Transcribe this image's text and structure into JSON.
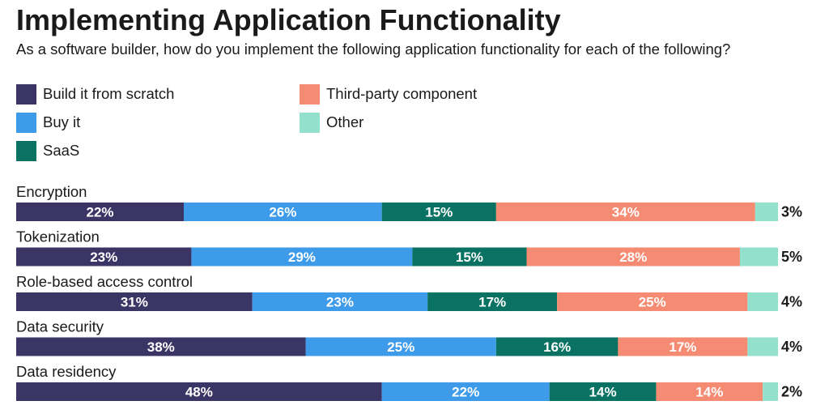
{
  "title": "Implementing Application Functionality",
  "subtitle": "As a software builder, how do you implement the following application functionality for each of the following?",
  "legend": [
    {
      "label": "Build it from scratch",
      "color": "#3b3565"
    },
    {
      "label": "Buy it",
      "color": "#3d9be9"
    },
    {
      "label": "SaaS",
      "color": "#0a7263"
    },
    {
      "label": "Third-party component",
      "color": "#f58b73"
    },
    {
      "label": "Other",
      "color": "#93e1cc"
    }
  ],
  "chart_data": {
    "type": "bar",
    "orientation": "horizontal",
    "stacked": true,
    "unit": "%",
    "categories": [
      "Encryption",
      "Tokenization",
      "Role-based access control",
      "Data security",
      "Data residency"
    ],
    "series": [
      {
        "name": "Build it from scratch",
        "color": "#3b3565",
        "values": [
          22,
          23,
          31,
          38,
          48
        ]
      },
      {
        "name": "Buy it",
        "color": "#3d9be9",
        "values": [
          26,
          29,
          23,
          25,
          22
        ]
      },
      {
        "name": "SaaS",
        "color": "#0a7263",
        "values": [
          15,
          15,
          17,
          16,
          14
        ]
      },
      {
        "name": "Third-party component",
        "color": "#f58b73",
        "values": [
          34,
          28,
          25,
          17,
          14
        ]
      },
      {
        "name": "Other",
        "color": "#93e1cc",
        "values": [
          3,
          5,
          4,
          4,
          2
        ]
      }
    ],
    "labels_inside": [
      [
        "22%",
        "26%",
        "15%",
        "34%"
      ],
      [
        "23%",
        "29%",
        "15%",
        "28%"
      ],
      [
        "31%",
        "23%",
        "17%",
        "25%"
      ],
      [
        "38%",
        "25%",
        "16%",
        "17%"
      ],
      [
        "48%",
        "22%",
        "14%",
        "14%"
      ]
    ],
    "end_labels": [
      "3%",
      "5%",
      "4%",
      "4%",
      "2%"
    ],
    "xlim": [
      0,
      100
    ],
    "grid": false,
    "legend_position": "top-left"
  }
}
